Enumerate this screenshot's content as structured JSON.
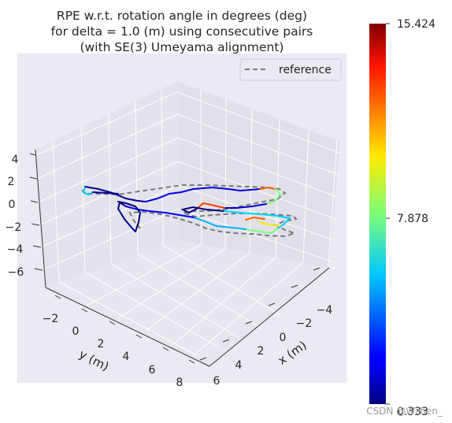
{
  "chart_data": {
    "type": "line3d",
    "title_lines": [
      "RPE w.r.t. rotation angle in degrees (deg)",
      "for delta = 1.0 (m) using consecutive pairs",
      "(with SE(3) Umeyama alignment)"
    ],
    "axes": {
      "x": {
        "label": "x (m)",
        "ticks": [
          "−4",
          "−2",
          "0",
          "2",
          "4",
          "6"
        ],
        "range": [
          -5,
          7
        ]
      },
      "y": {
        "label": "y (m)",
        "ticks": [
          "−2",
          "0",
          "2",
          "4",
          "6",
          "8"
        ],
        "range": [
          -3,
          9
        ]
      },
      "z": {
        "label": "",
        "ticks": [
          "4",
          "2",
          "0",
          "−2",
          "−4",
          "−6"
        ],
        "range": [
          -7,
          5
        ]
      }
    },
    "legend": {
      "entries": [
        {
          "label": "reference",
          "style": "dashed",
          "color": "#808080"
        }
      ],
      "position": "top-right"
    },
    "colorbar": {
      "min": 0.333,
      "mid": 7.878,
      "max": 15.424,
      "tick_labels": [
        "15.424",
        "7.878",
        "0.333"
      ],
      "colormap": "jet"
    },
    "grid": true
  },
  "watermark": "CSDN @Wzhen_"
}
